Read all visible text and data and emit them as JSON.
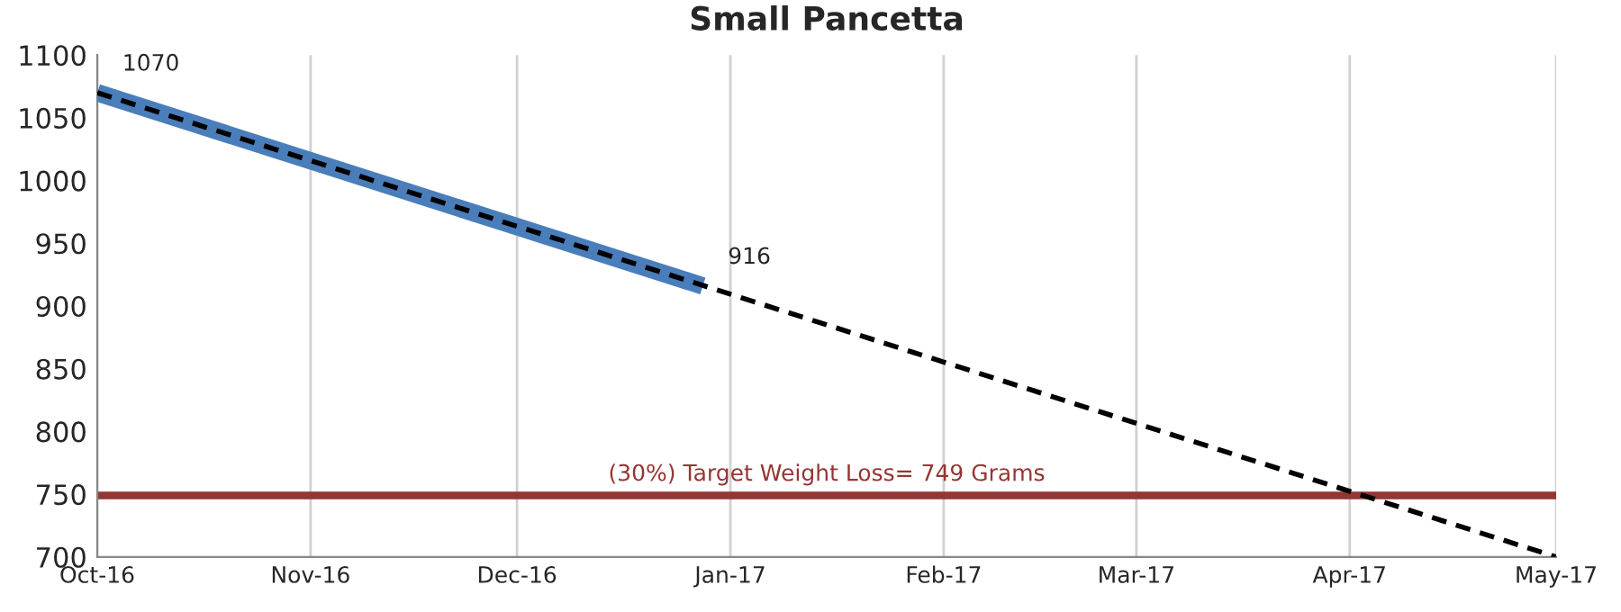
{
  "chart_data": {
    "type": "line",
    "title": "Small Pancetta",
    "series": [
      {
        "color": "#4a7ebb",
        "x": [
          "2016-10-01",
          "2016-12-28"
        ],
        "values": [
          1070,
          916
        ],
        "value_labels": [
          "1070",
          "916"
        ],
        "line_style": "solid",
        "marker": "none"
      },
      {
        "type": "line",
        "color": "#000000",
        "x": [
          "2016-10-01",
          "2017-05-01"
        ],
        "values": [
          1070,
          700
        ],
        "line_style": "dashed",
        "marker": "none"
      }
    ],
    "xlim": [
      "2016-10-01",
      "2017-05-01"
    ],
    "xticks": [
      {
        "value": "2016-10-01",
        "label": "Oct-16"
      },
      {
        "value": "2016-11-01",
        "label": "Nov-16"
      },
      {
        "value": "2016-12-01",
        "label": "Dec-16"
      },
      {
        "value": "2017-01-01",
        "label": "Jan-17"
      },
      {
        "value": "2017-02-01",
        "label": "Feb-17"
      },
      {
        "value": "2017-03-01",
        "label": "Mar-17"
      },
      {
        "value": "2017-04-01",
        "label": "Apr-17"
      },
      {
        "value": "2017-05-01",
        "label": "May-17"
      }
    ],
    "ylim": [
      700,
      1100
    ],
    "yticks": [
      700,
      750,
      800,
      850,
      900,
      950,
      1000,
      1050,
      1100
    ],
    "ref_lines": [
      {
        "axis": "y",
        "value": 749,
        "label": "(30%) Target Weight Loss= 749 Grams",
        "color": "#943634",
        "line_style": "solid"
      }
    ],
    "grid": "x",
    "legend": false
  }
}
